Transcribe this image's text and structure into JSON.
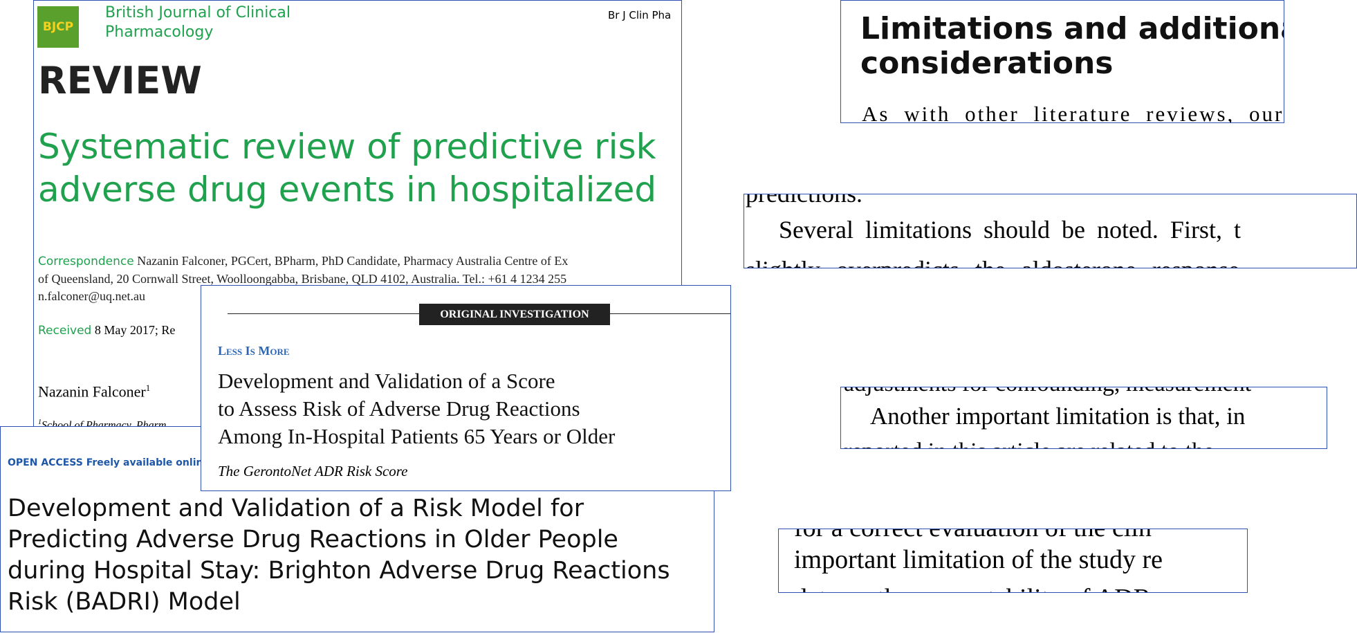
{
  "panels": [
    {
      "journal": "British Journal of Clinical Pharmacology",
      "logo": "BJCP",
      "citation": "Br J Clin Pha",
      "section": "REVIEW",
      "title_lines": [
        "Systematic review of predictive risk",
        "adverse drug events in hospitalized"
      ],
      "correspondence_label": "Correspondence",
      "correspondence_lines": [
        "Nazanin Falconer, PGCert, BPharm, PhD Candidate, Pharmacy Australia Centre of Ex",
        "of Queensland, 20 Cornwall Street, Woolloongabba, Brisbane, QLD 4102, Australia. Tel.: +61 4 1234 255",
        "n.falconer@uq.net.au"
      ],
      "received_label": "Received",
      "received_text": "8 May 2017; Re",
      "author": "Nazanin Falconer",
      "author_sup": "1",
      "affiliation": "School of Pharmacy, Pharm"
    },
    {
      "banner": "ORIGINAL INVESTIGATION",
      "kicker": "Less Is More",
      "title_lines": [
        "Development and Validation of a Score",
        "to Assess Risk of Adverse Drug Reactions",
        "Among In-Hospital Patients 65 Years or Older"
      ],
      "subtitle": "The GerontoNet ADR Risk Score"
    },
    {
      "open_access": "OPEN",
      "access": "ACCESS",
      "freely": "Freely available online",
      "title_lines": [
        "Development and Validation of a Risk Model for",
        "Predicting Adverse Drug Reactions in Older People",
        "during Hospital Stay: Brighton Adverse Drug Reactions",
        "Risk (BADRI) Model"
      ]
    },
    {
      "heading_lines": [
        "Limitations and additional",
        "considerations"
      ],
      "text": "As with other literature reviews, our"
    },
    {
      "lines": [
        "predictions.",
        "Several limitations should be noted. First, t",
        "slightly overpredicts the aldosterone response"
      ]
    },
    {
      "lines": [
        "adjustments for confounding, measurement",
        "Another important limitation is that, in",
        "reported in this article are related to the"
      ]
    },
    {
      "lines": [
        "for a correct evaluation of the clin",
        "important limitation of the study re",
        "data on the preventability of ADR"
      ]
    }
  ]
}
